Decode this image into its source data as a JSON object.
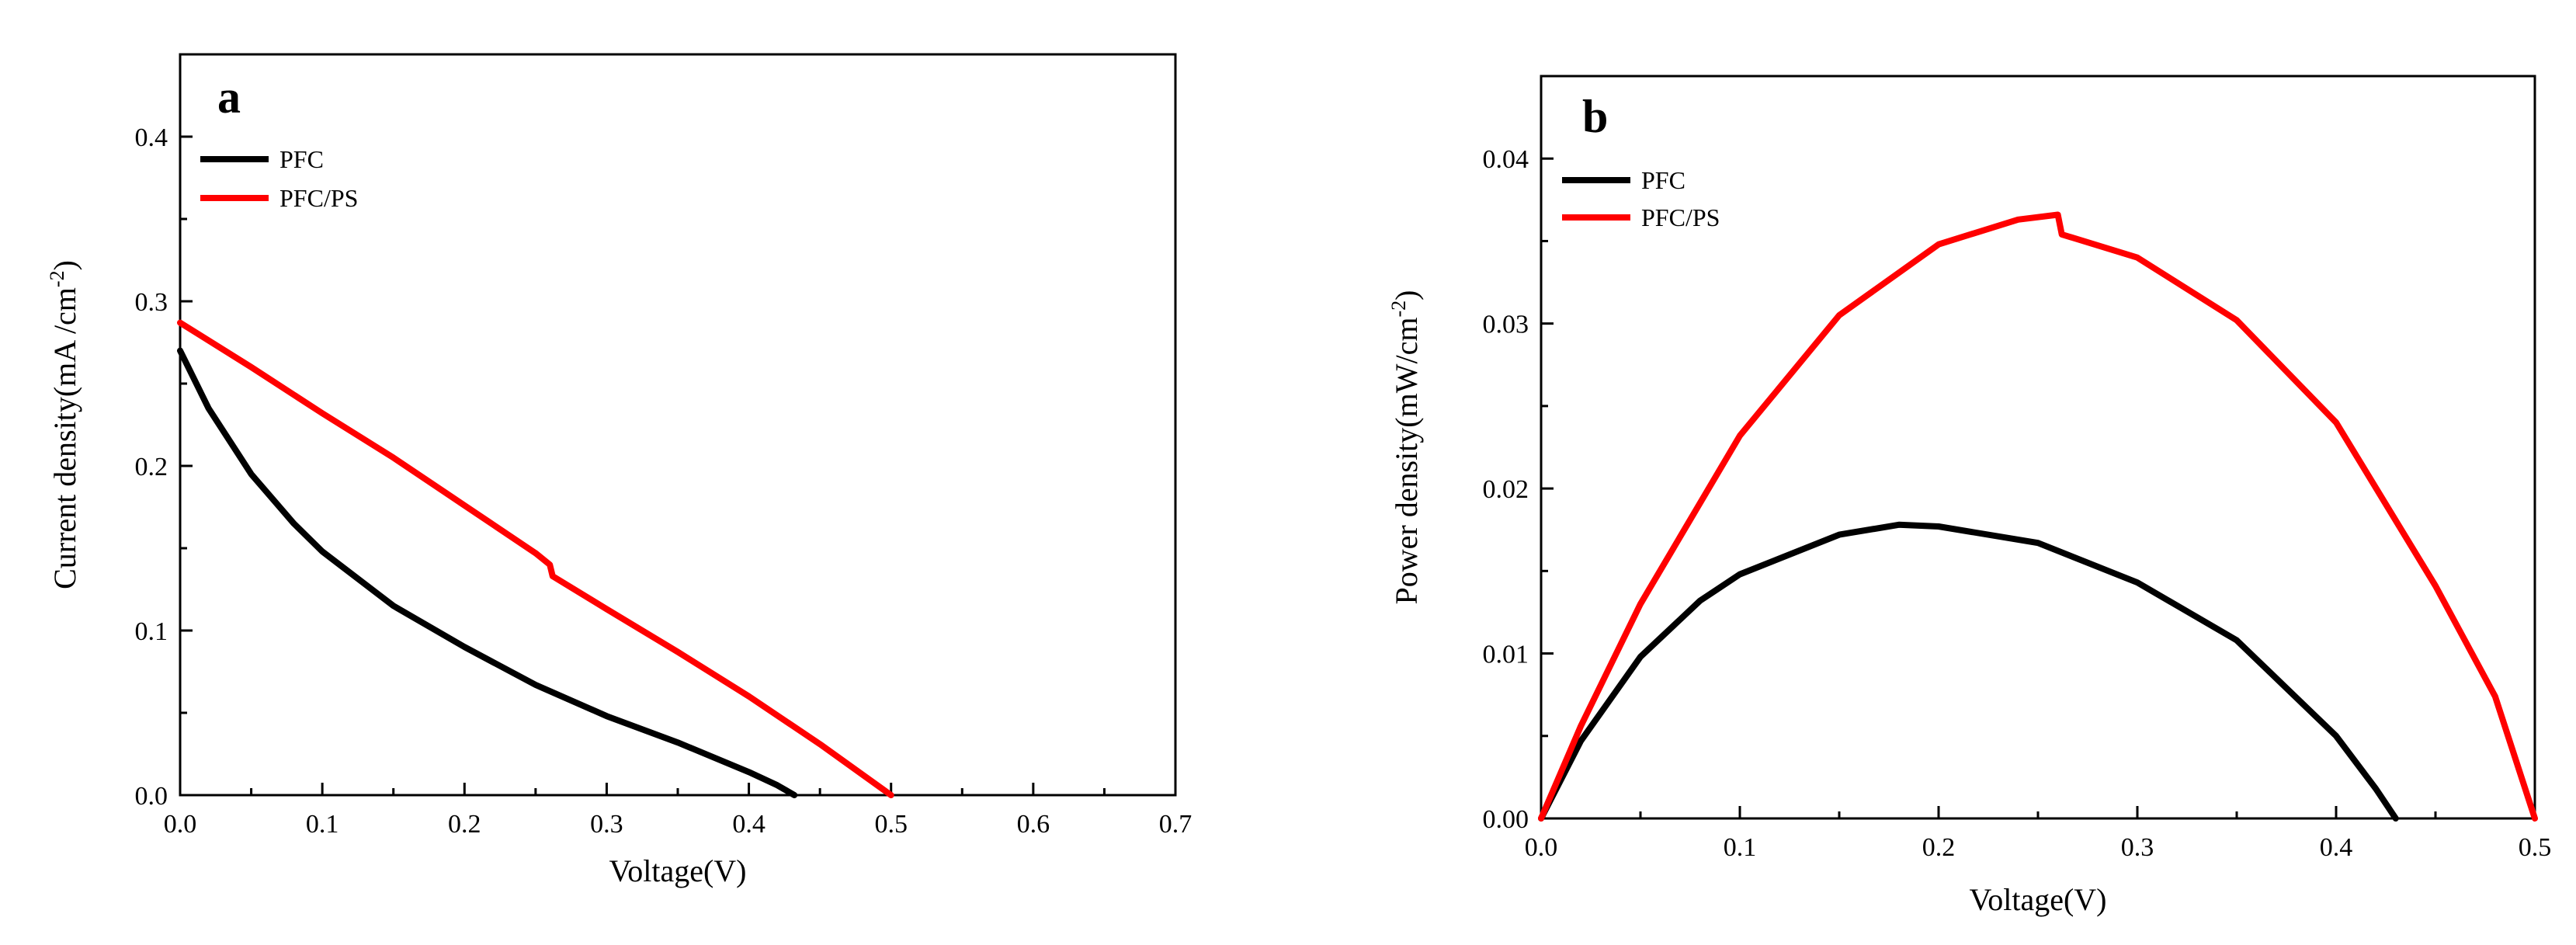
{
  "chart_data": [
    {
      "type": "line",
      "panel_label": "a",
      "xlabel": "Voltage(V)",
      "ylabel": "Current density(mA /cm",
      "ylabel_sup": "-2",
      "ylabel_close": ")",
      "xlim": [
        0.0,
        0.7
      ],
      "ylim": [
        0.0,
        0.45
      ],
      "xticks": [
        "0.0",
        "0.1",
        "0.2",
        "0.3",
        "0.4",
        "0.5",
        "0.6",
        "0.7"
      ],
      "yticks": [
        "0.0",
        "0.1",
        "0.2",
        "0.3",
        "0.4"
      ],
      "legend_position": "top-left",
      "series": [
        {
          "name": "PFC",
          "color": "#000000",
          "x": [
            0.0,
            0.02,
            0.05,
            0.08,
            0.1,
            0.15,
            0.2,
            0.25,
            0.3,
            0.35,
            0.4,
            0.42,
            0.432
          ],
          "y": [
            0.27,
            0.235,
            0.195,
            0.165,
            0.148,
            0.115,
            0.09,
            0.067,
            0.048,
            0.032,
            0.014,
            0.006,
            0.0
          ]
        },
        {
          "name": "PFC/PS",
          "color": "#ff0000",
          "x": [
            0.0,
            0.05,
            0.1,
            0.15,
            0.2,
            0.25,
            0.26,
            0.262,
            0.3,
            0.35,
            0.4,
            0.45,
            0.5
          ],
          "y": [
            0.287,
            0.26,
            0.232,
            0.205,
            0.176,
            0.147,
            0.14,
            0.133,
            0.113,
            0.087,
            0.06,
            0.031,
            0.0
          ]
        }
      ]
    },
    {
      "type": "line",
      "panel_label": "b",
      "xlabel": "Voltage(V)",
      "ylabel": "Power density(mW/cm",
      "ylabel_sup": "-2",
      "ylabel_close": ")",
      "xlim": [
        0.0,
        0.5
      ],
      "ylim": [
        0.0,
        0.045
      ],
      "xticks": [
        "0.0",
        "0.1",
        "0.2",
        "0.3",
        "0.4",
        "0.5"
      ],
      "yticks": [
        "0.00",
        "0.01",
        "0.02",
        "0.03",
        "0.04"
      ],
      "legend_position": "top-left",
      "series": [
        {
          "name": "PFC",
          "color": "#000000",
          "x": [
            0.0,
            0.02,
            0.05,
            0.08,
            0.1,
            0.15,
            0.18,
            0.2,
            0.25,
            0.3,
            0.35,
            0.4,
            0.42,
            0.43
          ],
          "y": [
            0.0,
            0.0047,
            0.0098,
            0.0132,
            0.0148,
            0.0172,
            0.0178,
            0.0177,
            0.0167,
            0.0143,
            0.0108,
            0.005,
            0.0018,
            0.0
          ]
        },
        {
          "name": "PFC/PS",
          "color": "#ff0000",
          "x": [
            0.0,
            0.02,
            0.05,
            0.1,
            0.15,
            0.2,
            0.24,
            0.26,
            0.262,
            0.3,
            0.35,
            0.4,
            0.45,
            0.48,
            0.5
          ],
          "y": [
            0.0,
            0.0056,
            0.013,
            0.0232,
            0.0305,
            0.0348,
            0.0363,
            0.0366,
            0.0354,
            0.034,
            0.0302,
            0.024,
            0.0141,
            0.0074,
            0.0
          ]
        }
      ]
    }
  ]
}
